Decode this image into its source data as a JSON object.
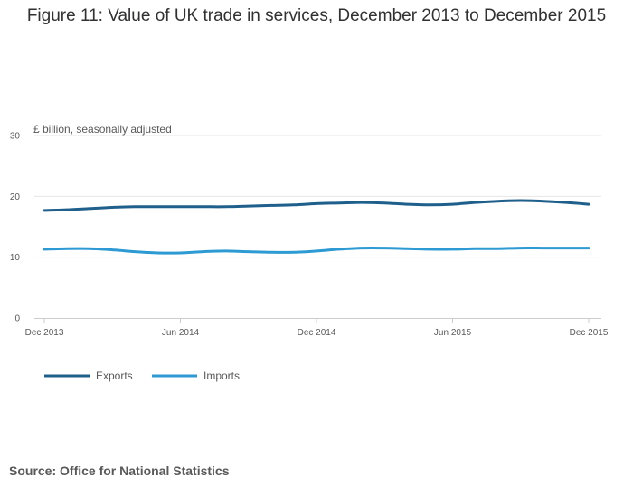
{
  "chart_data": {
    "type": "line",
    "title": "Figure 11: Value of UK trade in services, December 2013 to December 2015",
    "ylabel": "£ billion, seasonally adjusted",
    "xlabel": "",
    "ylim": [
      0,
      30
    ],
    "yticks": [
      0,
      10,
      20,
      30
    ],
    "x_tick_labels": [
      "Dec 2013",
      "Jun 2014",
      "Dec 2014",
      "Jun 2015",
      "Dec 2015"
    ],
    "x_tick_positions": [
      0,
      6,
      12,
      18,
      24
    ],
    "x": [
      "Dec 2013",
      "Jan 2014",
      "Feb 2014",
      "Mar 2014",
      "Apr 2014",
      "May 2014",
      "Jun 2014",
      "Jul 2014",
      "Aug 2014",
      "Sep 2014",
      "Oct 2014",
      "Nov 2014",
      "Dec 2014",
      "Jan 2015",
      "Feb 2015",
      "Mar 2015",
      "Apr 2015",
      "May 2015",
      "Jun 2015",
      "Jul 2015",
      "Aug 2015",
      "Sep 2015",
      "Oct 2015",
      "Nov 2015",
      "Dec 2015"
    ],
    "series": [
      {
        "name": "Exports",
        "color": "#1f5f8b",
        "values": [
          17.7,
          17.8,
          18.0,
          18.2,
          18.3,
          18.3,
          18.3,
          18.3,
          18.3,
          18.4,
          18.5,
          18.6,
          18.8,
          18.9,
          19.0,
          18.9,
          18.7,
          18.6,
          18.7,
          19.0,
          19.2,
          19.3,
          19.2,
          19.0,
          18.7
        ]
      },
      {
        "name": "Imports",
        "color": "#2d9ad3",
        "values": [
          11.3,
          11.4,
          11.4,
          11.2,
          10.9,
          10.7,
          10.7,
          10.9,
          11.0,
          10.9,
          10.8,
          10.8,
          11.0,
          11.3,
          11.5,
          11.5,
          11.4,
          11.3,
          11.3,
          11.4,
          11.4,
          11.5,
          11.5,
          11.5,
          11.5
        ]
      }
    ],
    "legend_position": "bottom-left"
  },
  "source": "Source: Office for National Statistics"
}
